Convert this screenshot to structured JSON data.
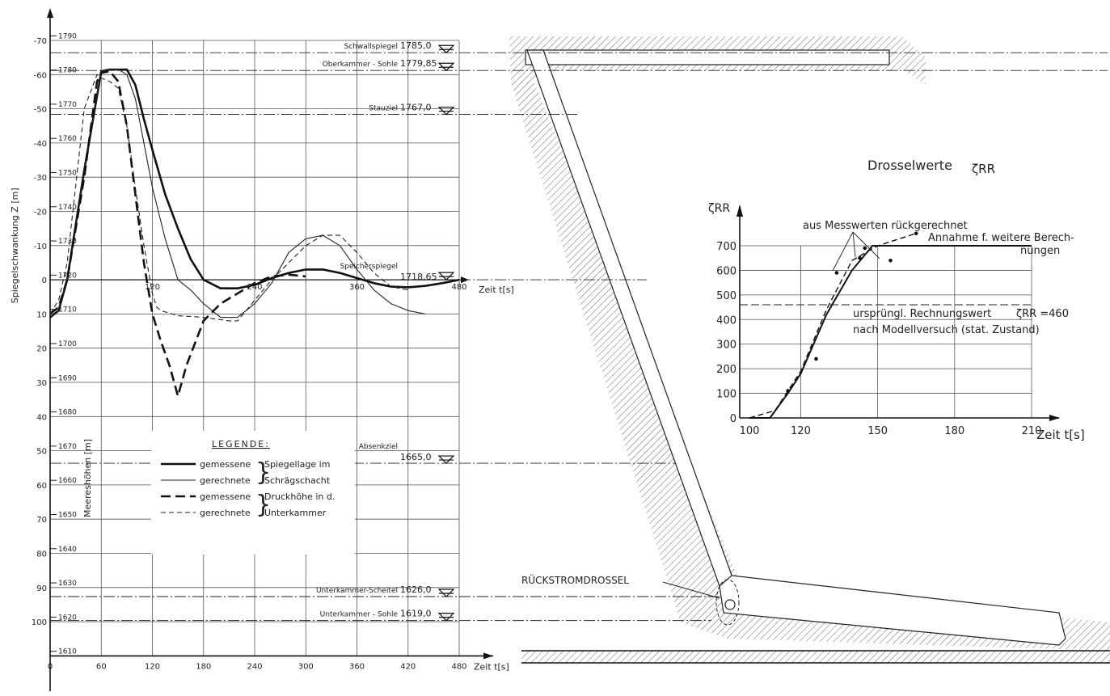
{
  "chart_data": [
    {
      "type": "line",
      "xlabel": "Zeit  t[s]",
      "ylabel": "Spiegelschwankung  Z [m]",
      "ylabel2": "Meereshöhen [m]",
      "xlim": [
        0,
        480
      ],
      "ylim": [
        -70,
        110
      ],
      "x_ticks": [
        "0",
        "60",
        "120",
        "180",
        "240",
        "300",
        "360",
        "420",
        "480"
      ],
      "upper_x_ticks": [
        "120",
        "240",
        "360",
        "480"
      ],
      "y_ticks": [
        "-70",
        "-60",
        "-50",
        "-40",
        "-30",
        "-20",
        "-10",
        "0",
        "10",
        "20",
        "30",
        "40",
        "50",
        "60",
        "70",
        "80",
        "90",
        "100"
      ],
      "elev_ticks": [
        "1790",
        "1780",
        "1770",
        "1760",
        "1750",
        "1740",
        "1730",
        "1720",
        "1710",
        "1700",
        "1690",
        "1680",
        "1670",
        "1660",
        "1650",
        "1640",
        "1630",
        "1620",
        "1610"
      ],
      "levels": [
        {
          "name": "Schwallspiegel",
          "value": "1785,0",
          "z": -66.4
        },
        {
          "name": "Oberkammer - Sohle",
          "value": "1779,85",
          "z": -61.2
        },
        {
          "name": "Stauziel",
          "value": "1767,0",
          "z": -48.35
        },
        {
          "name": "Speicherspiegel",
          "value": "1718,65",
          "z": 0
        },
        {
          "name": "Absenkziel",
          "value": "1665,0",
          "z": 53.65
        },
        {
          "name": "Unterkammer-Scheitel",
          "value": "1626,0",
          "z": 92.65
        },
        {
          "name": "Unterkammer - Sohle",
          "value": "1619,0",
          "z": 99.65
        }
      ],
      "legend_title": "LEGENDE:",
      "legend": [
        {
          "label": "gemessene",
          "style": "thick-solid"
        },
        {
          "label": "gerechnete",
          "style": "thin-solid"
        },
        {
          "label": "gemessene",
          "style": "thick-dashed"
        },
        {
          "label": "gerechnete",
          "style": "thin-dashed"
        }
      ],
      "legend_groups": [
        "Spiegellage im",
        "Schrägschacht",
        "Druckhöhe in d.",
        "Unterkammer"
      ],
      "series": [
        {
          "name": "gemessene Spiegellage im Schrägschacht",
          "style": "thick-solid",
          "x": [
            0,
            10,
            20,
            40,
            60,
            70,
            80,
            90,
            100,
            110,
            120,
            135,
            150,
            165,
            180,
            200,
            220,
            240,
            260,
            280,
            300,
            320,
            340,
            360,
            380,
            400,
            420,
            440,
            460,
            480
          ],
          "y": [
            11,
            9,
            0,
            -32,
            -61,
            -61.5,
            -61.5,
            -61.5,
            -57,
            -47,
            -38,
            -25,
            -15,
            -6,
            0,
            2.5,
            2.5,
            1.5,
            -0.5,
            -2,
            -3,
            -3,
            -2,
            -0.5,
            1,
            2,
            2.2,
            1.8,
            1,
            0
          ]
        },
        {
          "name": "gerechnete Spiegellage im Schrägschacht",
          "style": "thin-solid",
          "x": [
            0,
            10,
            20,
            40,
            60,
            70,
            80,
            90,
            100,
            110,
            120,
            135,
            150,
            165,
            180,
            200,
            220,
            240,
            260,
            280,
            300,
            320,
            340,
            360,
            380,
            400,
            420,
            440
          ],
          "y": [
            11,
            9,
            0,
            -32,
            -61,
            -61.5,
            -61.5,
            -60,
            -53,
            -40,
            -27,
            -12,
            0,
            3,
            7,
            11,
            11,
            7,
            1,
            -8,
            -12,
            -13,
            -10,
            -3,
            3,
            7,
            9,
            10
          ]
        },
        {
          "name": "gemessene Druckhöhe in d. Unterkammer",
          "style": "thick-dashed",
          "x": [
            0,
            10,
            20,
            40,
            55,
            60,
            70,
            80,
            90,
            100,
            110,
            120,
            130,
            140,
            150,
            160,
            180,
            200,
            220,
            240,
            260,
            280,
            300
          ],
          "y": [
            10,
            8,
            0,
            -30,
            -58,
            -60.5,
            -61,
            -58,
            -45,
            -25,
            -5,
            10,
            18,
            25,
            34,
            25,
            12,
            7,
            4,
            1,
            -1,
            -1.5,
            -1
          ]
        },
        {
          "name": "gerechnete Druckhöhe in d. Unterkammer",
          "style": "thin-dashed",
          "x": [
            0,
            10,
            20,
            40,
            55,
            60,
            70,
            80,
            90,
            100,
            110,
            120,
            125,
            130,
            150,
            180,
            210,
            220,
            240,
            260,
            280,
            300,
            320,
            340,
            360,
            380,
            400,
            420
          ],
          "y": [
            10,
            6,
            -5,
            -50,
            -60,
            -59,
            -58,
            -56,
            -45,
            -27,
            -10,
            4,
            8,
            9,
            10.5,
            11,
            12,
            12,
            6,
            0,
            -5,
            -10,
            -13,
            -13,
            -8,
            -2,
            2,
            3
          ]
        }
      ]
    },
    {
      "type": "line",
      "title": "Drosselwerte",
      "title_symbol": "ζRR",
      "ylabel": "ζRR",
      "xlabel": "Zeit  t[s]",
      "xlim": [
        100,
        210
      ],
      "ylim": [
        0,
        700
      ],
      "x_ticks": [
        "100",
        "120",
        "150",
        "180",
        "210"
      ],
      "y_ticks": [
        "0",
        "100",
        "200",
        "300",
        "400",
        "500",
        "600",
        "700"
      ],
      "annotations": [
        "aus Messwerten  rückgerechnet",
        "Annahme f. weitere Berech-",
        "nungen",
        "ursprüngl. Rechnungswert",
        "ζRR =460",
        "nach Modellversuch (stat. Zustand)"
      ],
      "reference_line": {
        "name": "ursprüngl. Rechnungswert",
        "y": 460
      },
      "series": [
        {
          "name": "Annahme f. weitere Berechnungen",
          "style": "solid",
          "x": [
            100,
            108,
            115,
            120,
            130,
            140,
            148,
            210
          ],
          "y": [
            0,
            0,
            100,
            180,
            420,
            600,
            700,
            700
          ]
        },
        {
          "name": "aus Messwerten rückgerechnet",
          "style": "dashed",
          "x": [
            100,
            110,
            120,
            130,
            140,
            150,
            165
          ],
          "y": [
            0,
            30,
            190,
            440,
            640,
            700,
            750
          ]
        },
        {
          "name": "points",
          "style": "markers",
          "x": [
            115,
            126,
            134,
            143,
            145,
            155,
            165
          ],
          "y": [
            110,
            240,
            590,
            650,
            690,
            640,
            750
          ]
        }
      ]
    }
  ],
  "drawing": {
    "label": "RÜCKSTROMDROSSEL"
  }
}
